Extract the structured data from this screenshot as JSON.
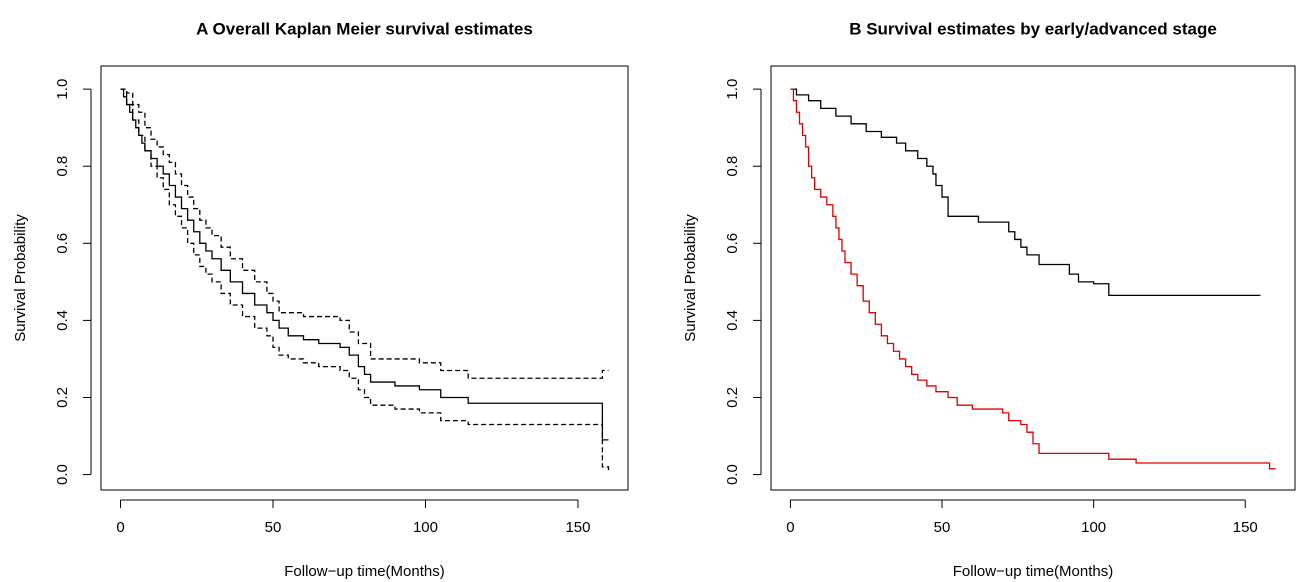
{
  "chart_data": [
    {
      "type": "line",
      "step": true,
      "title": "A Overall Kaplan Meier survival estimates",
      "xlabel": "Follow−up time(Months)",
      "ylabel": "Survival Probability",
      "xlim": [
        -6.4,
        166.4
      ],
      "ylim": [
        -0.04,
        1.06
      ],
      "xticks": [
        0,
        50,
        100,
        150
      ],
      "yticks": [
        {
          "value": 0,
          "label": "0.0"
        },
        0.2,
        0.4,
        0.6,
        0.8,
        {
          "value": 1,
          "label": "1.0"
        }
      ],
      "series": [
        {
          "color": "#000000",
          "linestyle": "solid",
          "x": [
            0,
            1,
            2,
            3,
            4,
            5,
            6,
            7,
            8,
            10,
            12,
            14,
            16,
            18,
            20,
            22,
            24,
            26,
            28,
            30,
            33,
            36,
            40,
            44,
            48,
            50,
            52,
            55,
            60,
            65,
            72,
            75,
            78,
            80,
            82,
            90,
            98,
            105,
            114,
            158,
            160
          ],
          "values": [
            1.0,
            0.98,
            0.96,
            0.94,
            0.92,
            0.9,
            0.88,
            0.86,
            0.84,
            0.82,
            0.8,
            0.78,
            0.75,
            0.72,
            0.69,
            0.66,
            0.63,
            0.6,
            0.58,
            0.56,
            0.53,
            0.5,
            0.47,
            0.44,
            0.42,
            0.4,
            0.38,
            0.36,
            0.35,
            0.34,
            0.33,
            0.31,
            0.28,
            0.26,
            0.24,
            0.23,
            0.22,
            0.2,
            0.185,
            0.09,
            0.09
          ]
        },
        {
          "color": "#000000",
          "linestyle": "dashed",
          "x": [
            0,
            2,
            4,
            6,
            8,
            10,
            12,
            14,
            16,
            18,
            20,
            22,
            24,
            26,
            28,
            30,
            33,
            36,
            40,
            44,
            48,
            50,
            52,
            60,
            72,
            75,
            78,
            82,
            98,
            105,
            114,
            158,
            160
          ],
          "values": [
            1.0,
            0.99,
            0.96,
            0.94,
            0.9,
            0.87,
            0.85,
            0.83,
            0.81,
            0.78,
            0.75,
            0.72,
            0.69,
            0.66,
            0.64,
            0.62,
            0.59,
            0.56,
            0.53,
            0.5,
            0.47,
            0.45,
            0.42,
            0.41,
            0.4,
            0.37,
            0.34,
            0.3,
            0.29,
            0.27,
            0.25,
            0.27,
            0.27
          ]
        },
        {
          "color": "#000000",
          "linestyle": "dashed",
          "x": [
            0,
            2,
            4,
            6,
            8,
            10,
            12,
            14,
            16,
            18,
            20,
            22,
            24,
            26,
            28,
            30,
            33,
            36,
            40,
            44,
            48,
            50,
            52,
            55,
            60,
            65,
            72,
            75,
            78,
            80,
            82,
            90,
            98,
            105,
            114,
            158,
            160
          ],
          "values": [
            1.0,
            0.96,
            0.92,
            0.88,
            0.84,
            0.8,
            0.77,
            0.74,
            0.7,
            0.67,
            0.64,
            0.6,
            0.57,
            0.54,
            0.52,
            0.5,
            0.47,
            0.44,
            0.41,
            0.38,
            0.36,
            0.33,
            0.31,
            0.3,
            0.29,
            0.28,
            0.27,
            0.25,
            0.22,
            0.2,
            0.18,
            0.17,
            0.16,
            0.14,
            0.13,
            0.02,
            0.01
          ]
        }
      ]
    },
    {
      "type": "line",
      "step": true,
      "title": "B Survival estimates by early/advanced stage",
      "xlabel": "Follow−up time(Months)",
      "ylabel": "Survival Probability",
      "xlim": [
        -6.4,
        166.4
      ],
      "ylim": [
        -0.04,
        1.06
      ],
      "xticks": [
        0,
        50,
        100,
        150
      ],
      "yticks": [
        {
          "value": 0,
          "label": "0.0"
        },
        0.2,
        0.4,
        0.6,
        0.8,
        {
          "value": 1,
          "label": "1.0"
        }
      ],
      "series": [
        {
          "color": "#000000",
          "linestyle": "solid",
          "x": [
            0,
            2,
            6,
            10,
            15,
            20,
            25,
            30,
            35,
            38,
            42,
            45,
            47,
            48,
            50,
            52,
            62,
            72,
            74,
            76,
            78,
            82,
            92,
            95,
            100,
            105,
            155
          ],
          "values": [
            1.0,
            0.985,
            0.97,
            0.95,
            0.93,
            0.91,
            0.89,
            0.875,
            0.86,
            0.84,
            0.82,
            0.8,
            0.78,
            0.75,
            0.72,
            0.67,
            0.655,
            0.63,
            0.61,
            0.59,
            0.57,
            0.545,
            0.52,
            0.5,
            0.495,
            0.465,
            0.465
          ]
        },
        {
          "color": "#dd0000",
          "linestyle": "solid",
          "x": [
            0,
            1,
            2,
            3,
            4,
            5,
            6,
            7,
            8,
            10,
            12,
            14,
            15,
            16,
            17,
            18,
            20,
            22,
            24,
            26,
            28,
            30,
            32,
            34,
            36,
            38,
            40,
            42,
            45,
            48,
            52,
            55,
            60,
            70,
            72,
            76,
            78,
            80,
            82,
            100,
            105,
            114,
            158,
            160
          ],
          "values": [
            1.0,
            0.97,
            0.94,
            0.91,
            0.88,
            0.85,
            0.8,
            0.77,
            0.74,
            0.72,
            0.7,
            0.67,
            0.64,
            0.61,
            0.58,
            0.55,
            0.52,
            0.49,
            0.45,
            0.42,
            0.39,
            0.36,
            0.34,
            0.32,
            0.3,
            0.28,
            0.26,
            0.245,
            0.23,
            0.215,
            0.2,
            0.18,
            0.17,
            0.16,
            0.14,
            0.13,
            0.11,
            0.08,
            0.055,
            0.055,
            0.04,
            0.03,
            0.015,
            0.015
          ]
        }
      ]
    }
  ]
}
